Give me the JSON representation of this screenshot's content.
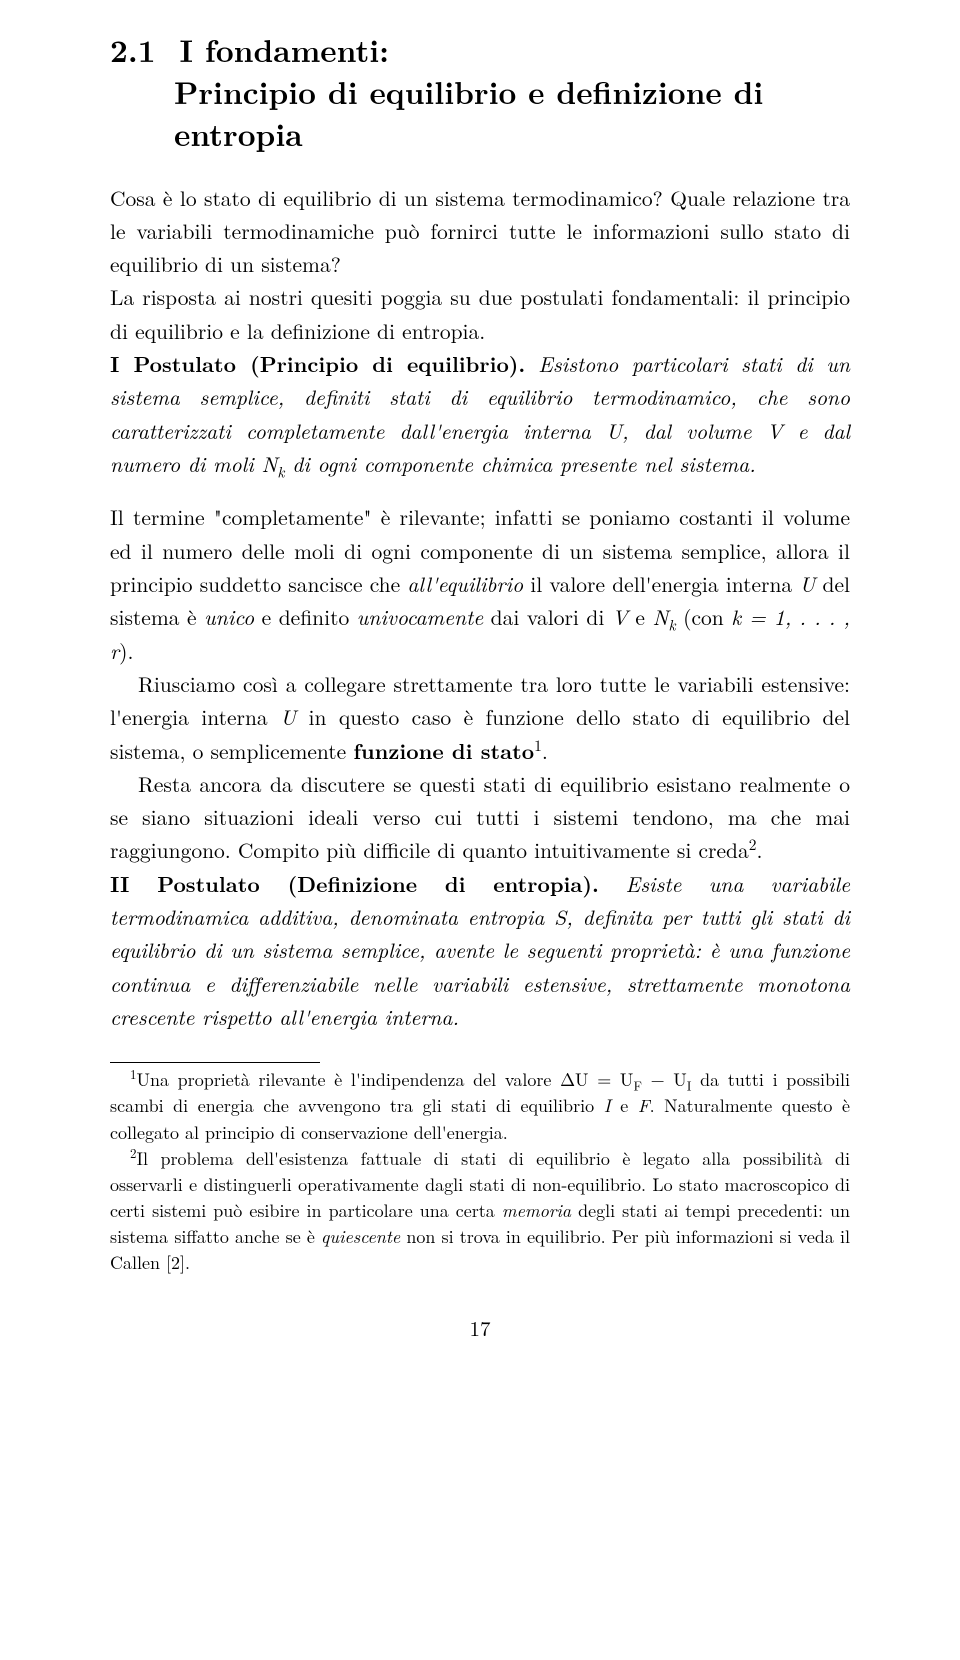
{
  "section": {
    "number": "2.1",
    "title_line1": "I fondamenti:",
    "title_line2": "Principio di equilibrio e definizione di entropia"
  },
  "body": {
    "intro": "Cosa è lo stato di equilibrio di un sistema termodinamico? Quale relazione tra le variabili termodinamiche può fornirci tutte le informazioni sullo stato di equilibrio di un sistema?",
    "answer": "La risposta ai nostri quesiti poggia su due postulati fondamentali: il principio di equilibrio e la definizione di entropia.",
    "post1_label": "I Postulato (Principio di equilibrio).",
    "post1_body_a": "Esistono particolari stati di un sistema semplice, definiti stati di equilibrio termodinamico, che sono caratterizzati completamente dall'energia interna ",
    "U": "U",
    "post1_body_b": ", dal volume ",
    "V": "V",
    "post1_body_c": " e dal numero di moli ",
    "Nk": "N",
    "Nk_sub": "k",
    "post1_body_d": " di ogni componente chimica presente nel sistema.",
    "para3_a": "Il termine \"completamente\" è rilevante; infatti se poniamo costanti il volume ed il numero delle moli di ogni componente di un sistema semplice, allora il principio suddetto sancisce che ",
    "para3_ital": "all'equilibrio",
    "para3_b": " il valore dell'energia interna ",
    "para3_c": " del sistema è ",
    "unico": "unico",
    "para3_d": " e definito ",
    "univoc": "univocamente",
    "para3_e": " dai valori di ",
    "and": " e ",
    "para3_f": " (con ",
    "k_eq": "k = 1, . . . , r",
    "para3_g": ").",
    "para4_a": "Riusciamo così a collegare strettamente tra loro tutte le variabili estensive: l'energia interna ",
    "para4_b": " in questo caso è funzione dello stato di equilibrio del sistema, o semplicemente ",
    "funz_stato": "funzione di stato",
    "sup1": "1",
    "dot": ".",
    "para5_a": "Resta ancora da discutere se questi stati di equilibrio esistano realmente o se siano situazioni ideali verso cui tutti i sistemi tendono, ma che mai raggiungono. Compito più difficile di quanto intuitivamente si creda",
    "sup2": "2",
    "post2_label": "II Postulato (Definizione di entropia).",
    "post2_body_a": "Esiste una variabile termodinamica additiva, denominata entropia ",
    "S": "S",
    "post2_body_b": ", definita per tutti gli stati di equilibrio di un sistema semplice, avente le seguenti proprietà: è una funzione continua e differenziabile nelle variabili estensive, strettamente monotona crescente rispetto all'energia interna."
  },
  "footnotes": {
    "f1_a": "Una proprietà rilevante è l'indipendenza del valore ",
    "deltaU": "ΔU = U",
    "sub_F": "F",
    "minus": " − U",
    "sub_I": "I",
    "f1_b": " da tutti i possibili scambi di energia che avvengono tra gli stati di equilibrio ",
    "I": "I",
    "and": " e ",
    "F": "F",
    "f1_c": ". Naturalmente questo è collegato al principio di conservazione dell'energia.",
    "f2_a": "Il problema dell'esistenza fattuale di stati di equilibrio è legato alla possibilità di osservarli e distinguerli operativamente dagli stati di non-equilibrio. Lo stato macroscopico di certi sistemi può esibire in particolare una certa ",
    "memoria": "memoria",
    "f2_b": " degli stati ai tempi precedenti: un sistema siffatto anche se è ",
    "quiesc": "quiescente",
    "f2_c": " non si trova in equilibrio. Per più informazioni si veda il Callen [2]."
  },
  "page_number": "17"
}
